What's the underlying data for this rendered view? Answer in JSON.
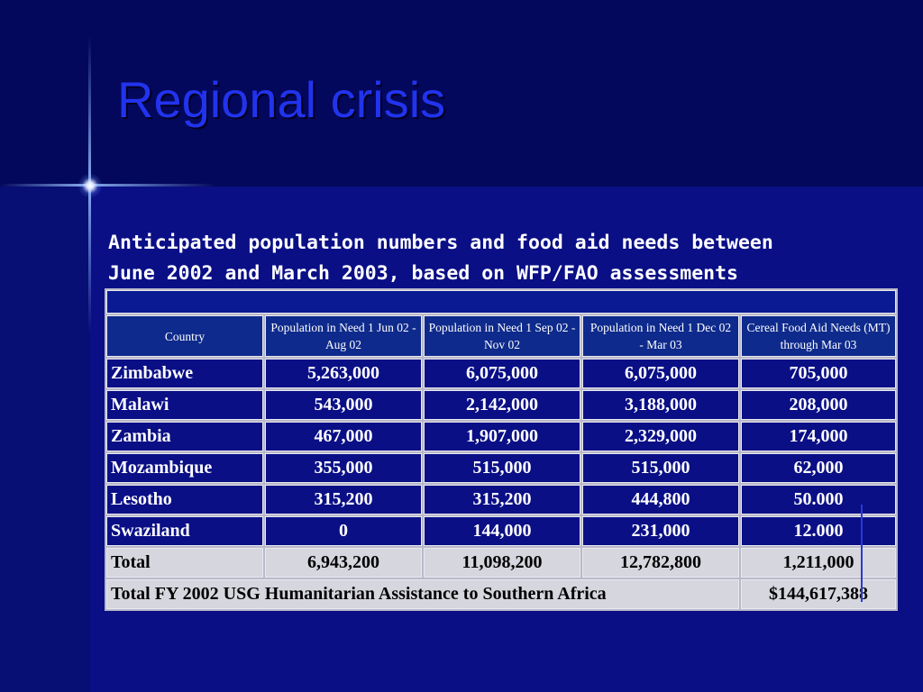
{
  "slide": {
    "title": "Regional crisis",
    "subtitle_line1": "Anticipated population numbers and food aid needs between",
    "subtitle_line2": "June 2002 and March 2003, based on WFP/FAO assessments"
  },
  "table": {
    "headers": [
      "Country",
      "Population in Need 1 Jun 02 - Aug 02",
      "Population in Need 1 Sep 02 - Nov 02",
      "Population in Need 1 Dec 02 - Mar 03",
      "Cereal Food Aid Needs (MT) through Mar 03"
    ],
    "rows": [
      {
        "country": "Zimbabwe",
        "jun_aug": "5,263,000",
        "sep_nov": "6,075,000",
        "dec_mar": "6,075,000",
        "cereal": "705,000"
      },
      {
        "country": "Malawi",
        "jun_aug": "543,000",
        "sep_nov": "2,142,000",
        "dec_mar": "3,188,000",
        "cereal": "208,000"
      },
      {
        "country": "Zambia",
        "jun_aug": "467,000",
        "sep_nov": "1,907,000",
        "dec_mar": "2,329,000",
        "cereal": "174,000"
      },
      {
        "country": "Mozambique",
        "jun_aug": "355,000",
        "sep_nov": "515,000",
        "dec_mar": "515,000",
        "cereal": "62,000"
      },
      {
        "country": "Lesotho",
        "jun_aug": "315,200",
        "sep_nov": "315,200",
        "dec_mar": "444,800",
        "cereal": "50.000"
      },
      {
        "country": "Swaziland",
        "jun_aug": "0",
        "sep_nov": "144,000",
        "dec_mar": "231,000",
        "cereal": "12.000"
      }
    ],
    "total": {
      "label": "Total",
      "jun_aug": "6,943,200",
      "sep_nov": "11,098,200",
      "dec_mar": "12,782,800",
      "cereal": "1,211,000"
    },
    "assistance": {
      "label": "Total FY 2002 USG Humanitarian Assistance to Southern Africa",
      "value": "$144,617,388"
    }
  },
  "colors": {
    "background": "#0a0f86",
    "top_band": "#03085c",
    "title_text": "#2233ee",
    "total_row_bg": "#d6d6de"
  },
  "icons": [
    "sparkle-icon"
  ]
}
